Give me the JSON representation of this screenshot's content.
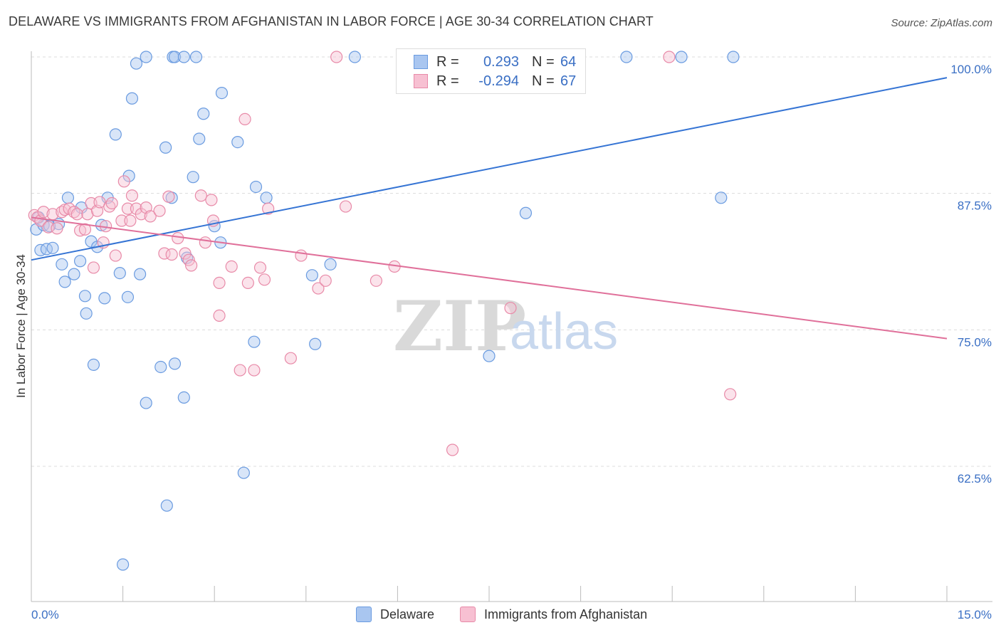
{
  "header": {
    "title": "DELAWARE VS IMMIGRANTS FROM AFGHANISTAN IN LABOR FORCE | AGE 30-34 CORRELATION CHART",
    "source": "Source: ZipAtlas.com"
  },
  "legend": {
    "rows": [
      {
        "r_label": "R =",
        "r_value": "0.293",
        "n_label": "N =",
        "n_value": "64",
        "color": "#a9c6f0",
        "border": "#6a9be0"
      },
      {
        "r_label": "R =",
        "r_value": "-0.294",
        "n_label": "N =",
        "n_value": "67",
        "color": "#f7c0d2",
        "border": "#e88aa8"
      }
    ]
  },
  "bottom_legend": [
    {
      "label": "Delaware",
      "color": "#a9c6f0",
      "border": "#6a9be0"
    },
    {
      "label": "Immigrants from Afghanistan",
      "color": "#f7c0d2",
      "border": "#e88aa8"
    }
  ],
  "watermark": {
    "zip": "ZIP",
    "atlas": "atlas"
  },
  "chart_data": {
    "type": "scatter",
    "title": "DELAWARE VS IMMIGRANTS FROM AFGHANISTAN IN LABOR FORCE | AGE 30-34 CORRELATION CHART",
    "xlabel": "",
    "ylabel": "In Labor Force | Age 30-34",
    "xlim": [
      0,
      15
    ],
    "ylim": [
      50,
      100.5
    ],
    "x_tick_labels": [
      {
        "value": 0,
        "label": "0.0%"
      },
      {
        "value": 15,
        "label": "15.0%"
      }
    ],
    "y_tick_labels": [
      {
        "value": 100,
        "label": "100.0%"
      },
      {
        "value": 87.5,
        "label": "87.5%"
      },
      {
        "value": 75,
        "label": "75.0%"
      },
      {
        "value": 62.5,
        "label": "62.5%"
      }
    ],
    "series": [
      {
        "name": "Delaware",
        "color": "#6a9be0",
        "fill": "#a9c6f0",
        "trend": {
          "x": [
            0,
            15
          ],
          "y": [
            81.4,
            98.1
          ]
        },
        "points": [
          [
            0.08,
            84.2
          ],
          [
            0.12,
            85.3
          ],
          [
            0.15,
            82.3
          ],
          [
            0.2,
            84.6
          ],
          [
            0.25,
            82.4
          ],
          [
            0.3,
            84.5
          ],
          [
            0.35,
            82.5
          ],
          [
            0.45,
            84.7
          ],
          [
            0.5,
            81.0
          ],
          [
            0.55,
            79.4
          ],
          [
            0.6,
            87.1
          ],
          [
            0.7,
            80.1
          ],
          [
            0.8,
            81.3
          ],
          [
            0.82,
            86.2
          ],
          [
            0.88,
            78.1
          ],
          [
            0.9,
            76.5
          ],
          [
            0.98,
            83.1
          ],
          [
            1.02,
            71.8
          ],
          [
            1.08,
            82.6
          ],
          [
            1.15,
            84.6
          ],
          [
            1.2,
            77.9
          ],
          [
            1.25,
            87.1
          ],
          [
            1.38,
            92.9
          ],
          [
            1.45,
            80.2
          ],
          [
            1.58,
            78.0
          ],
          [
            1.6,
            89.1
          ],
          [
            1.65,
            96.2
          ],
          [
            1.72,
            99.4
          ],
          [
            1.78,
            80.1
          ],
          [
            1.88,
            100.0
          ],
          [
            1.88,
            68.3
          ],
          [
            2.12,
            71.6
          ],
          [
            2.2,
            91.7
          ],
          [
            2.22,
            58.9
          ],
          [
            2.3,
            87.1
          ],
          [
            2.32,
            100.0
          ],
          [
            2.35,
            100.0
          ],
          [
            2.35,
            71.9
          ],
          [
            2.5,
            100.0
          ],
          [
            2.5,
            68.8
          ],
          [
            2.55,
            81.6
          ],
          [
            2.65,
            89.0
          ],
          [
            2.7,
            100.0
          ],
          [
            2.75,
            92.5
          ],
          [
            2.82,
            94.8
          ],
          [
            3.0,
            84.5
          ],
          [
            3.1,
            83.0
          ],
          [
            3.12,
            96.7
          ],
          [
            3.38,
            92.2
          ],
          [
            3.48,
            61.9
          ],
          [
            3.65,
            73.9
          ],
          [
            3.68,
            88.1
          ],
          [
            3.85,
            87.1
          ],
          [
            4.6,
            80.0
          ],
          [
            4.65,
            73.7
          ],
          [
            4.9,
            81.0
          ],
          [
            5.3,
            100.0
          ],
          [
            7.5,
            72.6
          ],
          [
            8.1,
            85.7
          ],
          [
            9.75,
            100.0
          ],
          [
            10.65,
            100.0
          ],
          [
            11.3,
            87.1
          ],
          [
            11.5,
            100.0
          ],
          [
            1.5,
            53.5
          ]
        ]
      },
      {
        "name": "Immigrants from Afghanistan",
        "color": "#e88aa8",
        "fill": "#f7c0d2",
        "trend": {
          "x": [
            0,
            15
          ],
          "y": [
            85.3,
            74.2
          ]
        },
        "points": [
          [
            0.05,
            85.5
          ],
          [
            0.1,
            85.3
          ],
          [
            0.15,
            85.0
          ],
          [
            0.2,
            85.8
          ],
          [
            0.28,
            84.4
          ],
          [
            0.35,
            85.6
          ],
          [
            0.42,
            84.3
          ],
          [
            0.5,
            85.8
          ],
          [
            0.55,
            86.0
          ],
          [
            0.62,
            86.1
          ],
          [
            0.7,
            85.8
          ],
          [
            0.75,
            85.6
          ],
          [
            0.8,
            84.1
          ],
          [
            0.88,
            84.2
          ],
          [
            0.92,
            85.6
          ],
          [
            0.98,
            86.6
          ],
          [
            1.02,
            80.7
          ],
          [
            1.08,
            85.9
          ],
          [
            1.12,
            86.7
          ],
          [
            1.18,
            83.0
          ],
          [
            1.22,
            84.5
          ],
          [
            1.28,
            86.3
          ],
          [
            1.32,
            86.6
          ],
          [
            1.38,
            81.8
          ],
          [
            1.48,
            85.0
          ],
          [
            1.52,
            88.6
          ],
          [
            1.58,
            86.1
          ],
          [
            1.62,
            85.0
          ],
          [
            1.65,
            87.3
          ],
          [
            1.72,
            86.1
          ],
          [
            1.8,
            85.6
          ],
          [
            1.88,
            86.2
          ],
          [
            1.95,
            85.4
          ],
          [
            2.1,
            85.9
          ],
          [
            2.18,
            82.0
          ],
          [
            2.25,
            87.2
          ],
          [
            2.3,
            81.9
          ],
          [
            2.4,
            83.4
          ],
          [
            2.52,
            82.0
          ],
          [
            2.58,
            81.4
          ],
          [
            2.62,
            80.9
          ],
          [
            2.78,
            87.3
          ],
          [
            2.85,
            83.0
          ],
          [
            2.95,
            86.9
          ],
          [
            2.98,
            85.0
          ],
          [
            3.08,
            79.3
          ],
          [
            3.08,
            76.3
          ],
          [
            3.28,
            80.8
          ],
          [
            3.42,
            71.3
          ],
          [
            3.5,
            94.3
          ],
          [
            3.55,
            79.3
          ],
          [
            3.65,
            71.3
          ],
          [
            3.75,
            80.7
          ],
          [
            3.82,
            79.6
          ],
          [
            3.88,
            86.1
          ],
          [
            4.25,
            72.4
          ],
          [
            4.42,
            81.8
          ],
          [
            4.7,
            78.8
          ],
          [
            4.82,
            79.5
          ],
          [
            5.0,
            100.0
          ],
          [
            5.15,
            86.3
          ],
          [
            5.65,
            79.5
          ],
          [
            5.95,
            80.8
          ],
          [
            6.9,
            64.0
          ],
          [
            7.85,
            77.0
          ],
          [
            10.45,
            100.0
          ],
          [
            11.45,
            69.1
          ]
        ]
      }
    ]
  }
}
